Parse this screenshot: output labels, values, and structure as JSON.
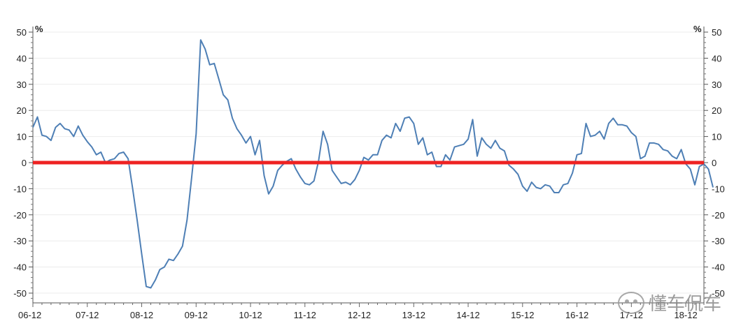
{
  "chart_data": {
    "type": "line",
    "title": "",
    "unit_left": "%",
    "unit_right": "%",
    "ylim": [
      -53,
      50
    ],
    "y_ticks": [
      50,
      40,
      30,
      20,
      10,
      0,
      -10,
      -20,
      -30,
      -40,
      -50
    ],
    "y_tick_labels": [
      "50",
      "40",
      "30",
      "20",
      "10",
      "0",
      "-10",
      "-20",
      "-30",
      "-40",
      "-50"
    ],
    "x_tick_labels": [
      "06-12",
      "07-12",
      "08-12",
      "09-12",
      "10-12",
      "11-12",
      "12-12",
      "13-12",
      "14-12",
      "15-12",
      "16-12",
      "17-12",
      "18-12"
    ],
    "x_range": [
      0,
      148
    ],
    "x_ticks": [
      0,
      12,
      24,
      36,
      48,
      60,
      72,
      84,
      96,
      108,
      120,
      132,
      144
    ],
    "reference_line": {
      "y": 0,
      "color": "#ee2222"
    },
    "series": [
      {
        "color": "#4e7fb5",
        "values": [
          13.5,
          17.5,
          10.5,
          10,
          8.5,
          13.5,
          15,
          13,
          12.5,
          10,
          14,
          10.5,
          8,
          6,
          3,
          4,
          0,
          1,
          1.5,
          3.5,
          4,
          1.5,
          -10,
          -22,
          -35,
          -47.5,
          -48,
          -45,
          -41,
          -40,
          -37,
          -37.5,
          -35,
          -32,
          -22,
          -6,
          11,
          47,
          43.5,
          37.5,
          38,
          32,
          26,
          24,
          17,
          13,
          10.5,
          7.5,
          10,
          3,
          8.5,
          -5,
          -12,
          -9,
          -3,
          -1,
          0.5,
          1.5,
          -2.5,
          -5.5,
          -8,
          -8.5,
          -7,
          0.5,
          12,
          7,
          -3,
          -5.5,
          -8,
          -7.5,
          -8.5,
          -6.5,
          -3,
          2,
          1,
          3,
          3,
          8.5,
          10.5,
          9.5,
          15,
          12,
          17,
          17.5,
          15,
          7,
          9.5,
          3,
          4,
          -1.5,
          -1.5,
          3,
          1,
          6,
          6.5,
          7,
          9,
          16.5,
          2.5,
          9.5,
          7,
          5.5,
          8.5,
          5.5,
          4.5,
          -1,
          -2.5,
          -4.5,
          -9,
          -11,
          -7.5,
          -9.5,
          -10,
          -8.5,
          -9,
          -11.5,
          -11.5,
          -8.5,
          -8,
          -4,
          3,
          3.5,
          15,
          10,
          10.5,
          12,
          9,
          15,
          17,
          14.5,
          14.5,
          14,
          11.5,
          10,
          1.5,
          2.5,
          7.5,
          7.5,
          7,
          5,
          4.5,
          2.5,
          1.5,
          5,
          -0.5,
          -2.5,
          -8.5,
          -1.5,
          -0.5,
          -2.5,
          -9.5
        ]
      }
    ],
    "grid": true,
    "legend": "none"
  },
  "watermark": {
    "text": "懂车侃车"
  }
}
